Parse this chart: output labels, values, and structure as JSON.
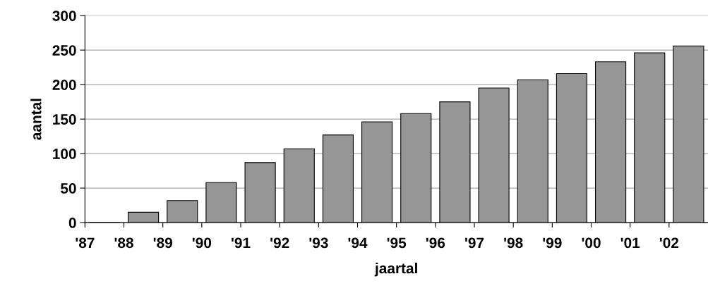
{
  "chart_data": {
    "type": "bar",
    "xlabel": "jaartal",
    "ylabel": "aantal",
    "categories": [
      "'87",
      "'88",
      "'89",
      "'90",
      "'91",
      "'92",
      "'93",
      "'94",
      "'95",
      "'96",
      "'97",
      "'98",
      "'99",
      "'00",
      "'01",
      "'02"
    ],
    "values": [
      0,
      15,
      32,
      58,
      87,
      107,
      127,
      146,
      158,
      175,
      195,
      207,
      216,
      233,
      246,
      256
    ],
    "color": "#969696",
    "ylim": [
      0,
      300
    ],
    "yticks": [
      0,
      50,
      100,
      150,
      200,
      250,
      300
    ],
    "grid": "y",
    "legend": false
  }
}
